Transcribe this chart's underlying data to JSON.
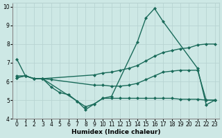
{
  "bg_color": "#cde8e5",
  "grid_color": "#b8d4d2",
  "line_color": "#1a6b5a",
  "line_width": 1.0,
  "marker": "D",
  "marker_size": 2.0,
  "xlabel": "Humidex (Indice chaleur)",
  "xlabel_fontsize": 6.5,
  "tick_fontsize": 5.5,
  "xlim": [
    -0.5,
    23.5
  ],
  "ylim": [
    4,
    10.2
  ],
  "yticks": [
    4,
    5,
    6,
    7,
    8,
    9,
    10
  ],
  "xticks": [
    0,
    1,
    2,
    3,
    4,
    5,
    6,
    7,
    8,
    9,
    10,
    11,
    12,
    13,
    14,
    15,
    16,
    17,
    18,
    19,
    20,
    21,
    22,
    23
  ],
  "series": [
    {
      "x": [
        0,
        1,
        2,
        3,
        7,
        8,
        9,
        10,
        11,
        14,
        15,
        16,
        17,
        21,
        22,
        23
      ],
      "y": [
        7.2,
        6.3,
        6.15,
        6.15,
        4.95,
        4.65,
        4.8,
        5.1,
        5.2,
        8.1,
        9.4,
        9.9,
        9.2,
        6.7,
        4.75,
        5.0
      ]
    },
    {
      "x": [
        0,
        1,
        2,
        3,
        9,
        10,
        11,
        12,
        13,
        14,
        15,
        16,
        17,
        18,
        19,
        20,
        21,
        22,
        23
      ],
      "y": [
        6.2,
        6.3,
        6.15,
        6.15,
        6.35,
        6.45,
        6.5,
        6.6,
        6.7,
        6.85,
        7.1,
        7.35,
        7.55,
        7.65,
        7.75,
        7.8,
        7.95,
        8.0,
        8.0
      ]
    },
    {
      "x": [
        0,
        1,
        2,
        3,
        4,
        9,
        10,
        11,
        12,
        13,
        14,
        15,
        16,
        17,
        18,
        19,
        20,
        21,
        22,
        23
      ],
      "y": [
        6.2,
        6.3,
        6.15,
        6.15,
        6.1,
        5.8,
        5.8,
        5.75,
        5.75,
        5.8,
        5.9,
        6.1,
        6.3,
        6.5,
        6.55,
        6.6,
        6.6,
        6.6,
        5.0,
        5.0
      ]
    },
    {
      "x": [
        0,
        1,
        2,
        3,
        4,
        5,
        6,
        7,
        8,
        9,
        10,
        11,
        12,
        13,
        14,
        15,
        16,
        17,
        18,
        19,
        20,
        21,
        22,
        23
      ],
      "y": [
        6.3,
        6.3,
        6.15,
        6.15,
        5.7,
        5.4,
        5.3,
        4.95,
        4.5,
        4.8,
        5.1,
        5.1,
        5.1,
        5.1,
        5.1,
        5.1,
        5.1,
        5.1,
        5.1,
        5.05,
        5.05,
        5.05,
        5.0,
        5.0
      ]
    }
  ]
}
